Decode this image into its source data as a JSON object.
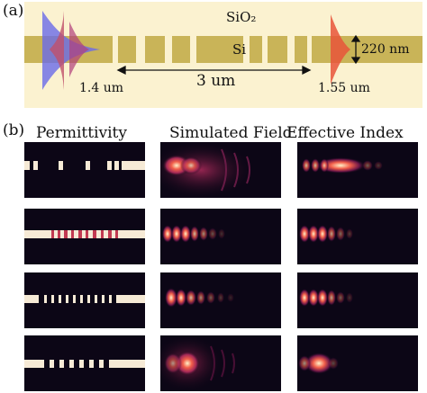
{
  "panel_a": {
    "label": "(a)",
    "cladding_label": "SiO₂",
    "core_label": "Si",
    "thickness_label": "220 nm",
    "distance_label": "3 um",
    "input_wavelength_label": "1.4 um",
    "output_wavelength_label": "1.55 um",
    "colors": {
      "cladding": "#fbf2d0",
      "silicon": "#c9b458",
      "input_mode_blue": "#7070e0",
      "input_mode_red": "#c0506a",
      "output_mode": "#e8553a"
    }
  },
  "panel_b": {
    "label": "(b)",
    "columns": [
      "Permittivity",
      "Simulated Field",
      "Effective Index"
    ],
    "rows": 4,
    "colormap": [
      "#0c0616",
      "#4a0f3a",
      "#a42857",
      "#f25f4a",
      "#fff1c8"
    ]
  }
}
